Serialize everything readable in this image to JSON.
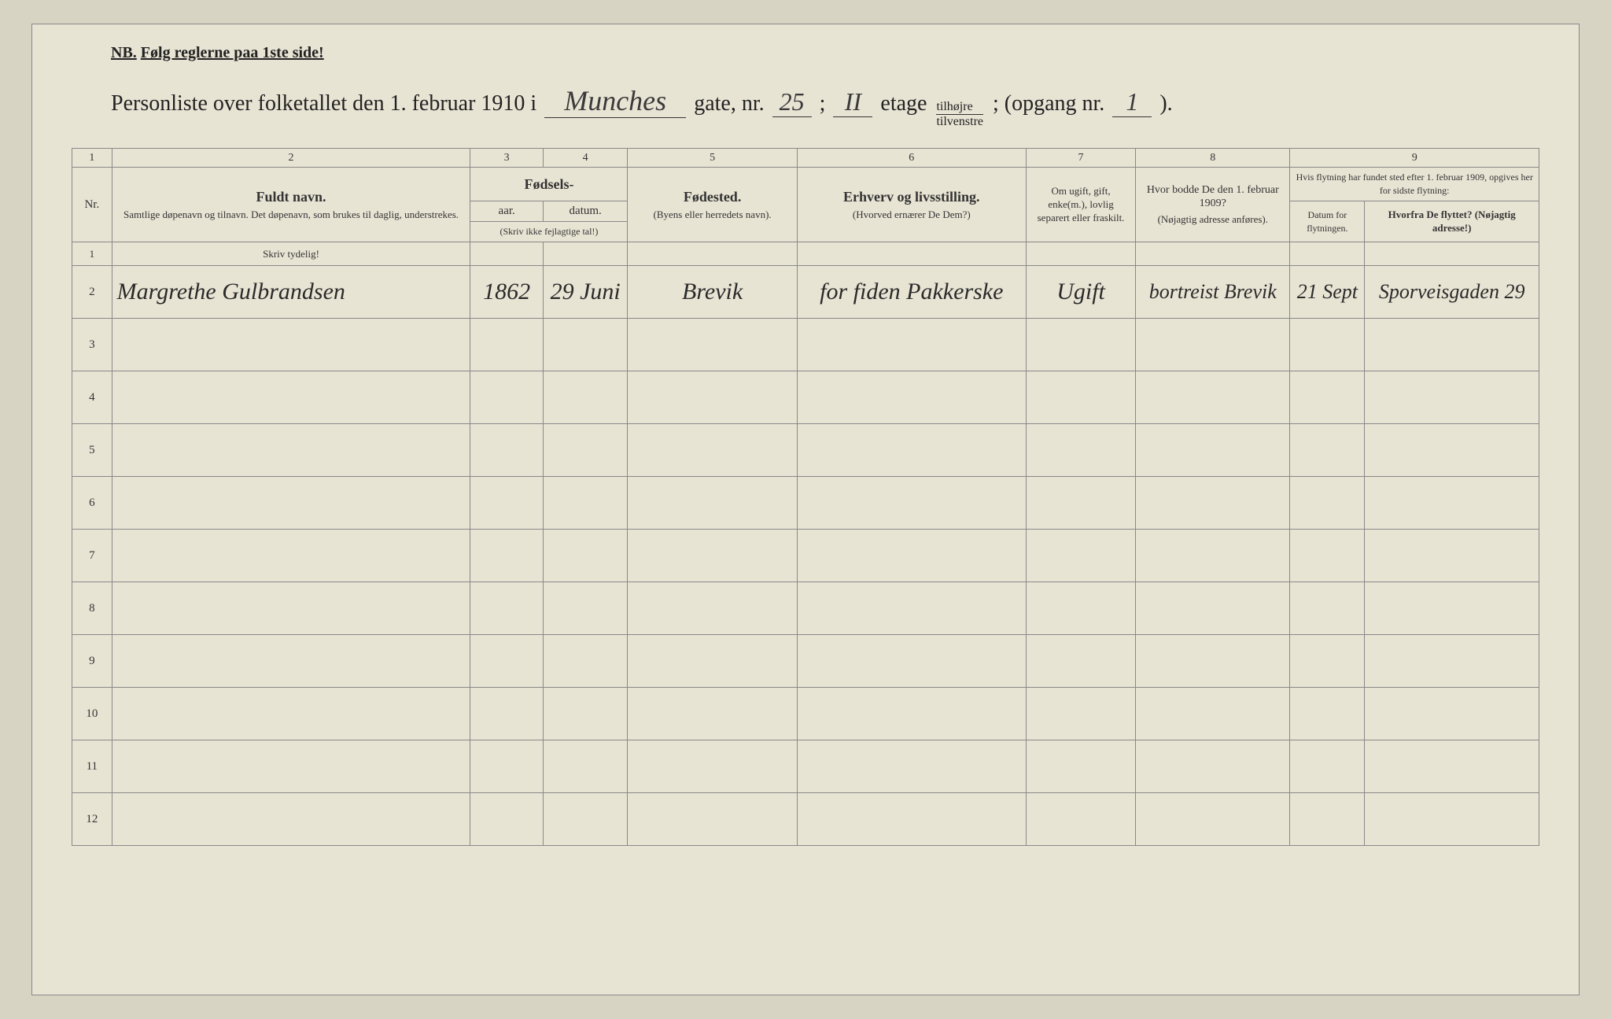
{
  "document": {
    "nb_prefix": "NB.",
    "nb_text": "Følg reglerne paa 1ste side!",
    "header": {
      "prefix": "Personliste over folketallet den 1. februar 1910 i",
      "street": "Munches",
      "gate_label": "gate, nr.",
      "gate_nr": "25",
      "semicolon": ";",
      "etage": "II",
      "etage_label": "etage",
      "fraction_top": "tilhøjre",
      "fraction_bot": "tilvenstre",
      "opgang_label": "; (opgang nr.",
      "opgang": "1",
      "close": ")."
    },
    "columns": {
      "numbers": [
        "1",
        "2",
        "3",
        "4",
        "5",
        "6",
        "7",
        "8",
        "9"
      ],
      "nr": "Nr.",
      "col2_main": "Fuldt navn.",
      "col2_sub": "Samtlige døpenavn og tilnavn. Det døpenavn, som brukes til daglig, understrekes.",
      "col34_top": "Fødsels-",
      "col3": "aar.",
      "col4": "datum.",
      "col34_tiny": "(Skriv ikke fejlagtige tal!)",
      "col5_main": "Fødested.",
      "col5_sub": "(Byens eller herredets navn).",
      "col6_main": "Erhverv og livsstilling.",
      "col6_sub": "(Hvorved ernærer De Dem?)",
      "col7": "Om ugift, gift, enke(m.), lovlig separert eller fraskilt.",
      "col8_main": "Hvor bodde De den 1. februar 1909?",
      "col8_sub": "(Nøjagtig adresse anføres).",
      "col9_top": "Hvis flytning har fundet sted efter 1. februar 1909, opgives her for sidste flytning:",
      "col9a": "Datum for flytningen.",
      "col9b": "Hvorfra De flyttet? (Nøjagtig adresse!)"
    },
    "instruction_row": {
      "col2": "Skriv tydelig!"
    },
    "row_numbers": [
      "1",
      "2",
      "3",
      "4",
      "5",
      "6",
      "7",
      "8",
      "9",
      "10",
      "11",
      "12"
    ],
    "entries": [
      {
        "name": "Margrethe Gulbrandsen",
        "year": "1862",
        "date": "29 Juni",
        "birthplace": "Brevik",
        "occupation": "for fiden Pakkerske",
        "marital": "Ugift",
        "address1909": "bortreist Brevik",
        "move_date": "21 Sept",
        "move_from": "Sporveisgaden 29"
      }
    ],
    "colors": {
      "paper": "#e8e4d4",
      "border": "#888",
      "text": "#222",
      "handwriting": "#2a2a2a"
    }
  }
}
